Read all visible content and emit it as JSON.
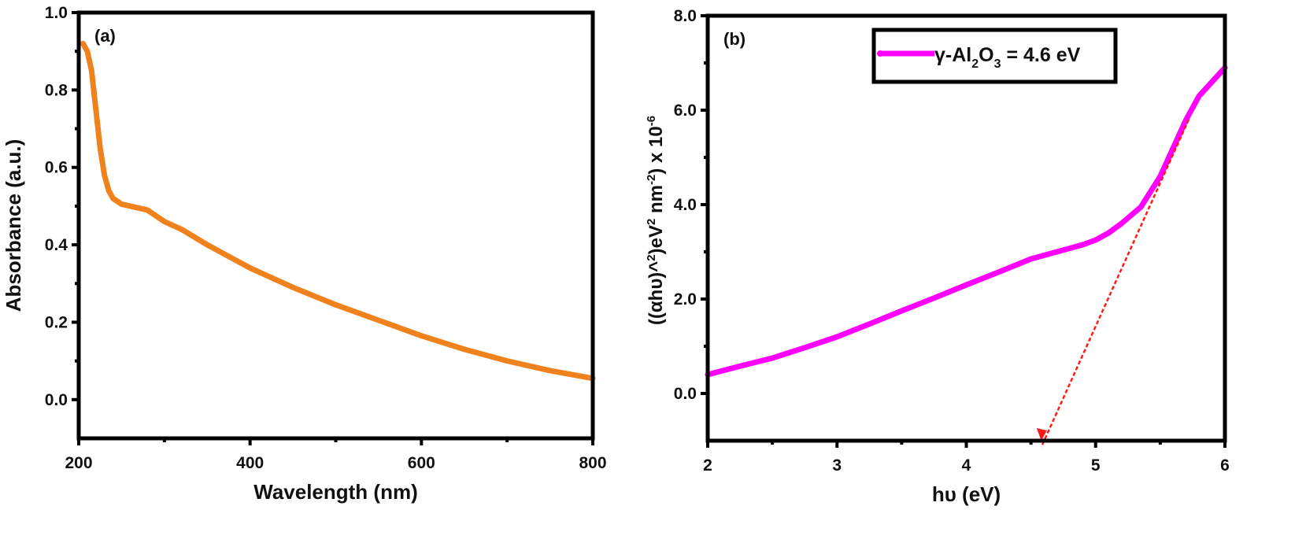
{
  "chart_data": [
    {
      "type": "line",
      "panel_label": "(a)",
      "xlabel": "Wavelength (nm)",
      "ylabel": "Absorbance (a.u.)",
      "xlim": [
        200,
        800
      ],
      "ylim": [
        -0.1,
        1.0
      ],
      "xticks": [
        "200",
        "400",
        "600",
        "800"
      ],
      "xtick_values": [
        200,
        400,
        600,
        800
      ],
      "yticks": [
        "0.0",
        "0.2",
        "0.4",
        "0.6",
        "0.8",
        "1.0"
      ],
      "ytick_values": [
        0,
        0.2,
        0.4,
        0.6,
        0.8,
        1.0
      ],
      "color": "#f0821e",
      "series": [
        {
          "name": "Absorbance",
          "x": [
            205,
            210,
            215,
            220,
            225,
            230,
            235,
            240,
            250,
            260,
            280,
            300,
            320,
            350,
            400,
            450,
            500,
            550,
            600,
            650,
            700,
            750,
            800
          ],
          "y": [
            0.92,
            0.9,
            0.85,
            0.75,
            0.65,
            0.58,
            0.54,
            0.52,
            0.505,
            0.5,
            0.49,
            0.46,
            0.44,
            0.4,
            0.34,
            0.29,
            0.245,
            0.205,
            0.165,
            0.13,
            0.1,
            0.075,
            0.055
          ]
        }
      ]
    },
    {
      "type": "line",
      "panel_label": "(b)",
      "xlabel": "hυ (eV)",
      "ylabel_parts": [
        "((αhυ)^",
        "2",
        ")eV",
        "2",
        " nm",
        "-2",
        ") x 10",
        "-6"
      ],
      "xlim": [
        2,
        6
      ],
      "ylim": [
        -1,
        8
      ],
      "xticks": [
        "2",
        "3",
        "4",
        "5",
        "6"
      ],
      "xtick_values": [
        2,
        3,
        4,
        5,
        6
      ],
      "yticks": [
        "0.0",
        "2.0",
        "4.0",
        "6.0",
        "8.0"
      ],
      "ytick_values": [
        0,
        2,
        4,
        6,
        8
      ],
      "color": "#ff00ff",
      "legend": {
        "prefix": "γ-Al",
        "sub1": "2",
        "mid": "O",
        "sub2": "3",
        "suffix": " = 4.6 eV",
        "placement": "top-center"
      },
      "series": [
        {
          "name": "γ-Al2O3",
          "x": [
            2.0,
            2.25,
            2.5,
            2.75,
            3.0,
            3.25,
            3.5,
            3.75,
            4.0,
            4.25,
            4.5,
            4.7,
            4.9,
            5.0,
            5.1,
            5.2,
            5.35,
            5.5,
            5.6,
            5.7,
            5.8,
            5.9,
            6.0
          ],
          "y": [
            0.4,
            0.58,
            0.75,
            0.97,
            1.2,
            1.47,
            1.75,
            2.02,
            2.3,
            2.57,
            2.85,
            3.0,
            3.15,
            3.25,
            3.4,
            3.6,
            3.95,
            4.6,
            5.2,
            5.8,
            6.3,
            6.6,
            6.9
          ]
        }
      ],
      "tangent": {
        "color": "#ff1a1a",
        "from": [
          5.72,
          5.8
        ],
        "to": [
          4.58,
          -1
        ],
        "band_gap_eV": 4.6
      }
    }
  ]
}
